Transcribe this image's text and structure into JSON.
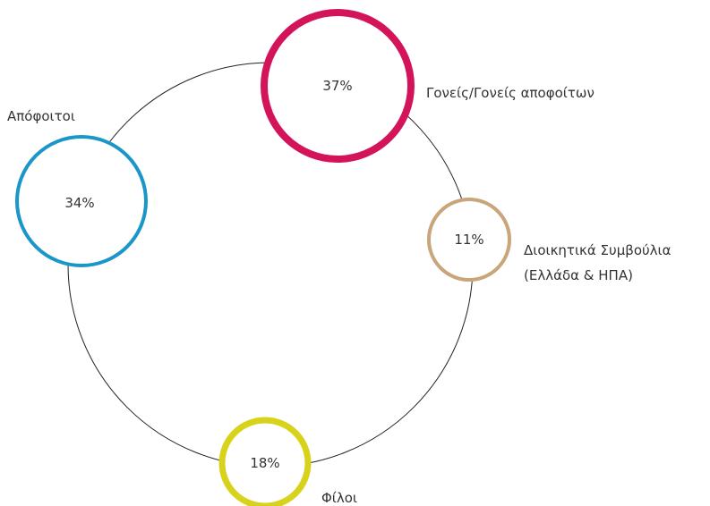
{
  "segments": [
    {
      "id": "parents",
      "percent": "37%",
      "label_lines": [
        "Γονείς/Γονείς αποφοίτων"
      ],
      "color": "#d4145a"
    },
    {
      "id": "boards",
      "percent": "11%",
      "label_lines": [
        "Διοικητικά Συμβούλια",
        "(Ελλάδα & ΗΠΑ)"
      ],
      "color": "#c9a57a"
    },
    {
      "id": "friends",
      "percent": "18%",
      "label_lines": [
        "Φίλοι"
      ],
      "color": "#d9d21a"
    },
    {
      "id": "alumni",
      "percent": "34%",
      "label_lines": [
        "Απόφοιτοι"
      ],
      "color": "#1a96c8"
    }
  ],
  "ring_color": "#222222"
}
